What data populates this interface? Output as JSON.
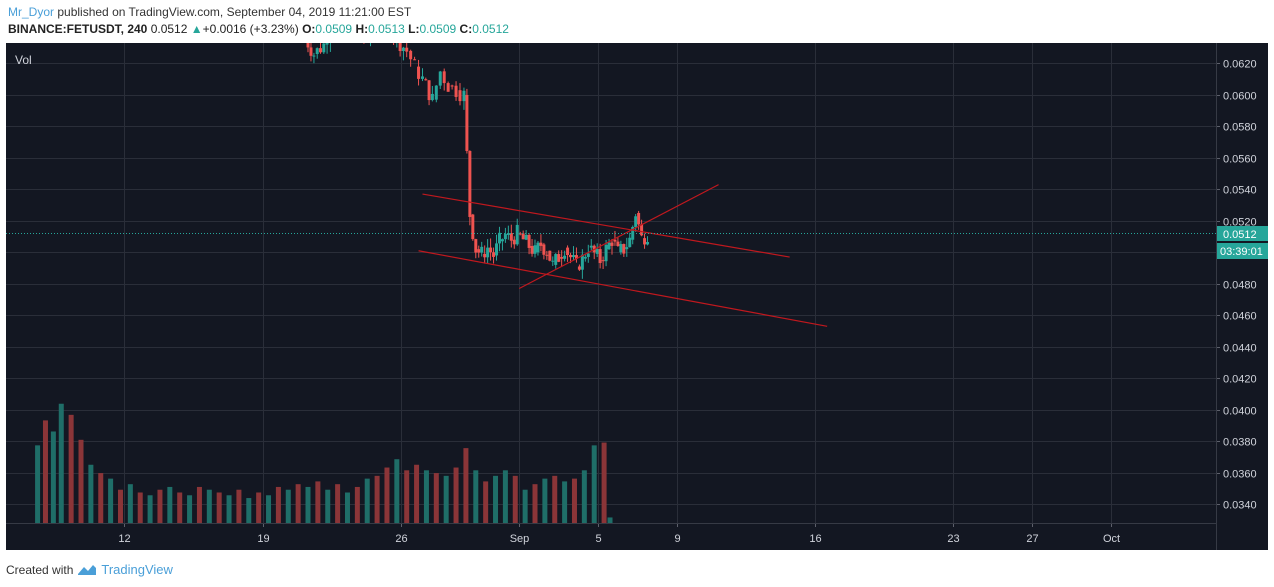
{
  "header": {
    "author": "Mr_Dyor",
    "published_text": "published on TradingView.com, September 04, 2019 11:21:00 EST",
    "symbol": "BINANCE:FETUSDT, 240",
    "last": "0.0512",
    "change": "+0.0016 (+3.23%)",
    "o_label": "O:",
    "o_value": "0.0509",
    "h_label": "H:",
    "h_value": "0.0513",
    "l_label": "L:",
    "l_value": "0.0509",
    "c_label": "C:",
    "c_value": "0.0512"
  },
  "footer": {
    "created_with": "Created with",
    "brand": "TradingView"
  },
  "colors": {
    "background": "#131722",
    "grid": "#2a2e39",
    "axis_text": "#d1d4dc",
    "up": "#26a69a",
    "down": "#ef5350",
    "vol_up": "#1f6e68",
    "vol_down": "#8b3538",
    "trendline": "#c0181e",
    "last_price": "#26a69a"
  },
  "chart_data": {
    "type": "candlestick",
    "volume_label": "Vol",
    "y_ticks": [
      "0.0620",
      "0.0600",
      "0.0580",
      "0.0560",
      "0.0540",
      "0.0520",
      "0.0500",
      "0.0480",
      "0.0460",
      "0.0440",
      "0.0420",
      "0.0400",
      "0.0380",
      "0.0360",
      "0.0340"
    ],
    "ylim": [
      0.0328,
      0.0633
    ],
    "x_ticks": [
      {
        "label": "12",
        "day": 12
      },
      {
        "label": "19",
        "day": 19
      },
      {
        "label": "26",
        "day": 26
      },
      {
        "label": "Sep",
        "day": 32
      },
      {
        "label": "5",
        "day": 36
      },
      {
        "label": "9",
        "day": 40
      },
      {
        "label": "16",
        "day": 47
      },
      {
        "label": "23",
        "day": 54
      },
      {
        "label": "27",
        "day": 58
      },
      {
        "label": "Oct",
        "day": 62
      }
    ],
    "xlim_days": [
      6.0,
      67.3
    ],
    "last_price_label": "0.0512",
    "countdown_label": "03:39:01",
    "last_price": 0.0512,
    "trendlines": [
      {
        "from": [
          27.1,
          0.0537
        ],
        "to": [
          45.7,
          0.0497
        ]
      },
      {
        "from": [
          26.9,
          0.0501
        ],
        "to": [
          47.6,
          0.0453
        ]
      },
      {
        "from": [
          32.0,
          0.0477
        ],
        "to": [
          42.1,
          0.0543
        ]
      }
    ],
    "price_path": [
      [
        21.0,
        0.064
      ],
      [
        21.6,
        0.0626
      ],
      [
        22.1,
        0.0632
      ],
      [
        22.6,
        0.065
      ],
      [
        23.2,
        0.0648
      ],
      [
        23.8,
        0.064
      ],
      [
        24.3,
        0.0636
      ],
      [
        24.8,
        0.064
      ],
      [
        25.3,
        0.0645
      ],
      [
        25.8,
        0.0636
      ],
      [
        26.3,
        0.0628
      ],
      [
        26.7,
        0.0618
      ],
      [
        27.1,
        0.061
      ],
      [
        27.6,
        0.0597
      ],
      [
        28.0,
        0.0615
      ],
      [
        28.4,
        0.0606
      ],
      [
        28.8,
        0.0603
      ],
      [
        29.2,
        0.06
      ],
      [
        29.5,
        0.0524
      ],
      [
        29.8,
        0.0502
      ],
      [
        30.1,
        0.0499
      ],
      [
        30.4,
        0.0503
      ],
      [
        30.7,
        0.0498
      ],
      [
        31.0,
        0.0507
      ],
      [
        31.3,
        0.0511
      ],
      [
        31.6,
        0.0508
      ],
      [
        31.9,
        0.0512
      ],
      [
        32.2,
        0.0508
      ],
      [
        32.5,
        0.0504
      ],
      [
        32.8,
        0.05
      ],
      [
        33.1,
        0.0505
      ],
      [
        33.4,
        0.0501
      ],
      [
        33.7,
        0.0492
      ],
      [
        34.0,
        0.0497
      ],
      [
        34.3,
        0.0503
      ],
      [
        34.6,
        0.0497
      ],
      [
        34.9,
        0.0491
      ],
      [
        35.2,
        0.0496
      ],
      [
        35.5,
        0.0503
      ],
      [
        35.8,
        0.0499
      ],
      [
        36.1,
        0.0495
      ],
      [
        36.4,
        0.0502
      ],
      [
        36.7,
        0.0508
      ],
      [
        37.0,
        0.05
      ],
      [
        37.3,
        0.0502
      ],
      [
        37.6,
        0.0508
      ],
      [
        37.9,
        0.0525
      ],
      [
        38.2,
        0.0509
      ],
      [
        38.5,
        0.0512
      ]
    ],
    "volume": [
      {
        "day": 7.6,
        "v": 0.28,
        "up": true
      },
      {
        "day": 8.0,
        "v": 0.37,
        "up": false
      },
      {
        "day": 8.4,
        "v": 0.33,
        "up": true
      },
      {
        "day": 8.8,
        "v": 0.43,
        "up": true
      },
      {
        "day": 9.3,
        "v": 0.39,
        "up": false
      },
      {
        "day": 9.8,
        "v": 0.3,
        "up": false
      },
      {
        "day": 10.3,
        "v": 0.21,
        "up": true
      },
      {
        "day": 10.8,
        "v": 0.18,
        "up": false
      },
      {
        "day": 11.3,
        "v": 0.16,
        "up": true
      },
      {
        "day": 11.8,
        "v": 0.12,
        "up": false
      },
      {
        "day": 12.3,
        "v": 0.14,
        "up": true
      },
      {
        "day": 12.8,
        "v": 0.11,
        "up": false
      },
      {
        "day": 13.3,
        "v": 0.1,
        "up": true
      },
      {
        "day": 13.8,
        "v": 0.12,
        "up": false
      },
      {
        "day": 14.3,
        "v": 0.13,
        "up": true
      },
      {
        "day": 14.8,
        "v": 0.11,
        "up": false
      },
      {
        "day": 15.3,
        "v": 0.1,
        "up": true
      },
      {
        "day": 15.8,
        "v": 0.13,
        "up": false
      },
      {
        "day": 16.3,
        "v": 0.12,
        "up": true
      },
      {
        "day": 16.8,
        "v": 0.11,
        "up": false
      },
      {
        "day": 17.3,
        "v": 0.1,
        "up": true
      },
      {
        "day": 17.8,
        "v": 0.12,
        "up": false
      },
      {
        "day": 18.3,
        "v": 0.09,
        "up": true
      },
      {
        "day": 18.8,
        "v": 0.11,
        "up": false
      },
      {
        "day": 19.3,
        "v": 0.1,
        "up": true
      },
      {
        "day": 19.8,
        "v": 0.13,
        "up": false
      },
      {
        "day": 20.3,
        "v": 0.12,
        "up": true
      },
      {
        "day": 20.8,
        "v": 0.14,
        "up": false
      },
      {
        "day": 21.3,
        "v": 0.13,
        "up": true
      },
      {
        "day": 21.8,
        "v": 0.15,
        "up": false
      },
      {
        "day": 22.3,
        "v": 0.12,
        "up": true
      },
      {
        "day": 22.8,
        "v": 0.14,
        "up": false
      },
      {
        "day": 23.3,
        "v": 0.11,
        "up": true
      },
      {
        "day": 23.8,
        "v": 0.13,
        "up": false
      },
      {
        "day": 24.3,
        "v": 0.16,
        "up": true
      },
      {
        "day": 24.8,
        "v": 0.17,
        "up": false
      },
      {
        "day": 25.3,
        "v": 0.2,
        "up": false
      },
      {
        "day": 25.8,
        "v": 0.23,
        "up": true
      },
      {
        "day": 26.3,
        "v": 0.19,
        "up": false
      },
      {
        "day": 26.8,
        "v": 0.21,
        "up": false
      },
      {
        "day": 27.3,
        "v": 0.19,
        "up": true
      },
      {
        "day": 27.8,
        "v": 0.18,
        "up": false
      },
      {
        "day": 28.3,
        "v": 0.17,
        "up": true
      },
      {
        "day": 28.8,
        "v": 0.2,
        "up": false
      },
      {
        "day": 29.3,
        "v": 0.27,
        "up": false
      },
      {
        "day": 29.8,
        "v": 0.19,
        "up": true
      },
      {
        "day": 30.3,
        "v": 0.15,
        "up": false
      },
      {
        "day": 30.8,
        "v": 0.17,
        "up": true
      },
      {
        "day": 31.3,
        "v": 0.19,
        "up": true
      },
      {
        "day": 31.8,
        "v": 0.17,
        "up": false
      },
      {
        "day": 32.3,
        "v": 0.12,
        "up": true
      },
      {
        "day": 32.8,
        "v": 0.14,
        "up": false
      },
      {
        "day": 33.3,
        "v": 0.16,
        "up": true
      },
      {
        "day": 33.8,
        "v": 0.17,
        "up": false
      },
      {
        "day": 34.3,
        "v": 0.15,
        "up": true
      },
      {
        "day": 34.8,
        "v": 0.16,
        "up": false
      },
      {
        "day": 35.3,
        "v": 0.19,
        "up": true
      },
      {
        "day": 35.8,
        "v": 0.28,
        "up": true
      },
      {
        "day": 36.3,
        "v": 0.29,
        "up": false
      },
      {
        "day": 36.6,
        "v": 0.02,
        "up": true
      }
    ],
    "volume_scale_max": 0.45
  }
}
